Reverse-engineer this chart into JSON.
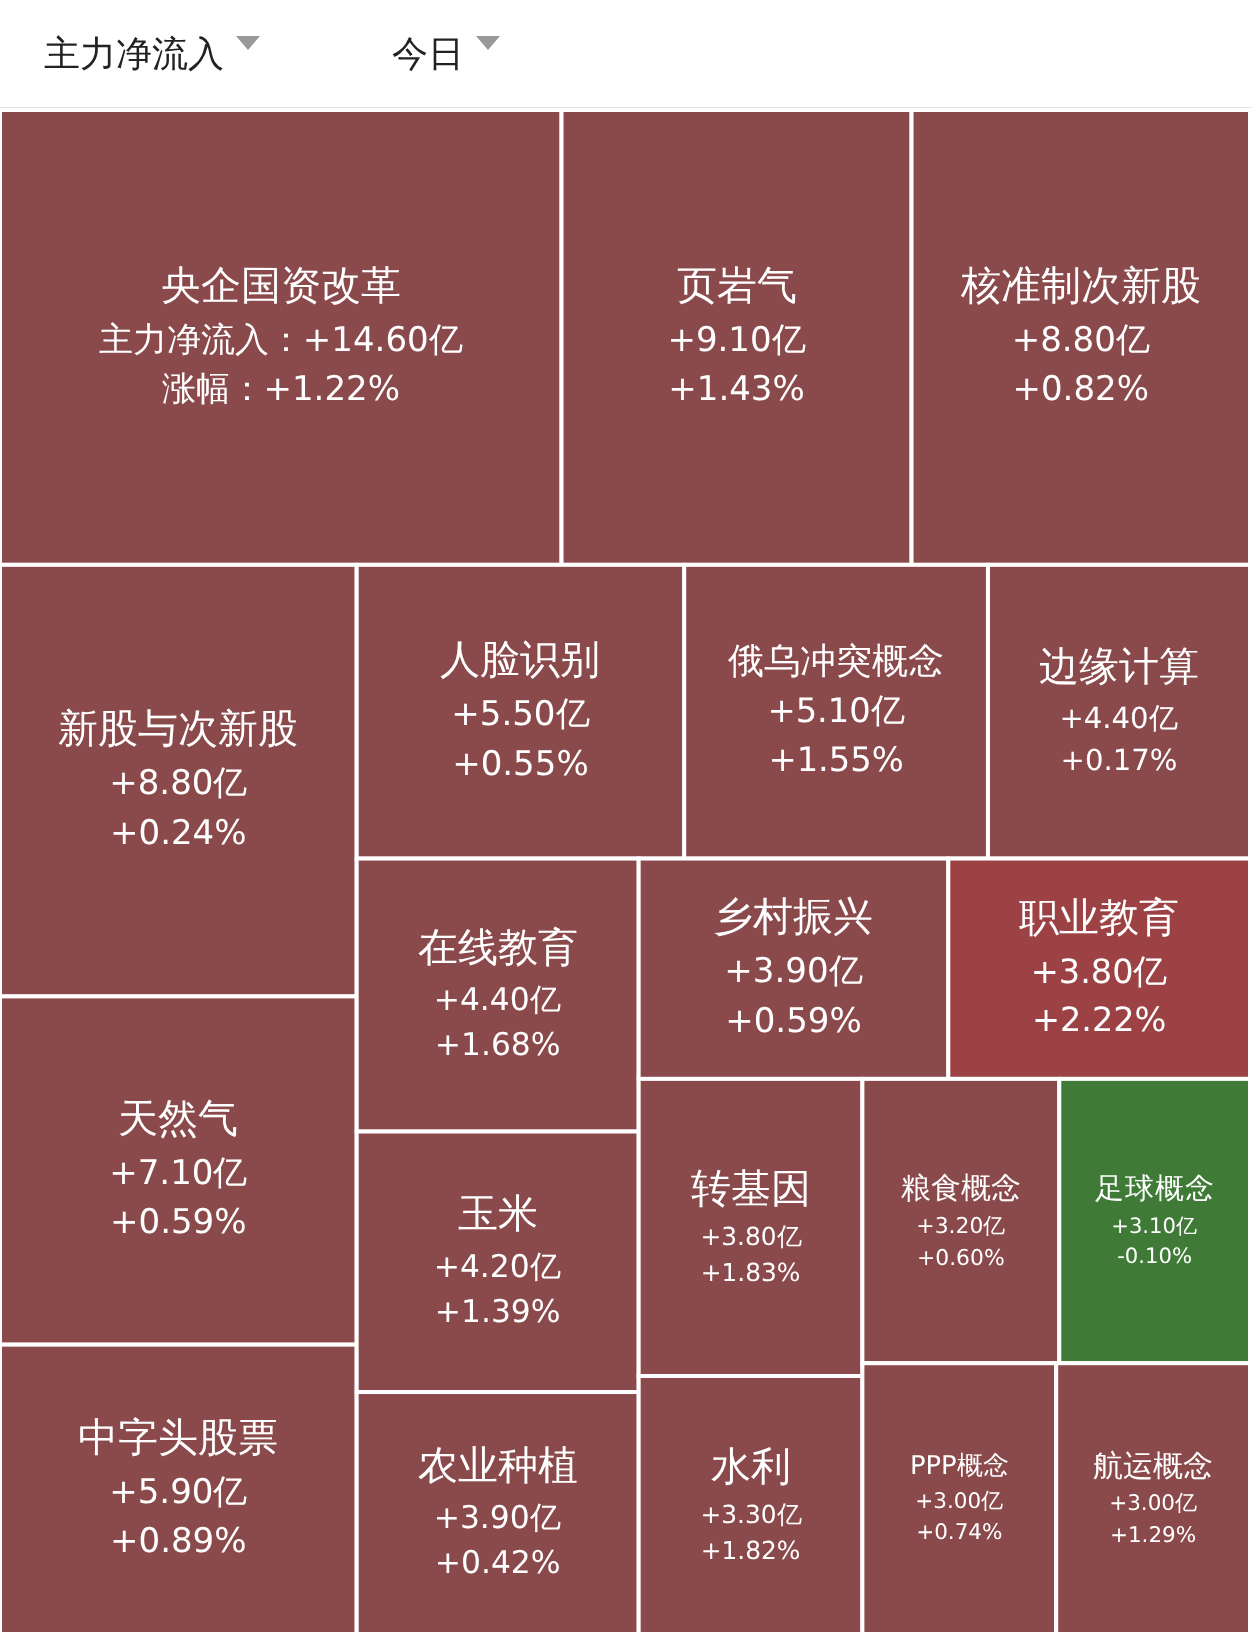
{
  "chart_data": {
    "type": "other",
    "annotations": [
      "主力净流入",
      "今日"
    ],
    "categories": [
      "央企国资改革",
      "页岩气",
      "核准制次新股",
      "新股与次新股",
      "天然气",
      "中字头股票",
      "人脸识别",
      "俄乌冲突概念",
      "边缘计算",
      "在线教育",
      "玉米",
      "农业种植",
      "乡村振兴",
      "职业教育",
      "转基因",
      "水利",
      "粮食概念",
      "足球概念",
      "PPP概念",
      "航运概念"
    ],
    "series": [
      {
        "colors": [
          "#8a494b",
          "#8a494b",
          "#8a494b",
          "#8a494b",
          "#8a494b",
          "#8a494b",
          "#8a494b",
          "#8a494b",
          "#8a494b",
          "#8a494b",
          "#8a494b",
          "#8a494b",
          "#8a494b",
          "#9c4244",
          "#8a494b",
          "#8a494b",
          "#8a494b",
          "#3f7a37",
          "#8a494b",
          "#8a494b"
        ],
        "values": [
          14.6,
          9.1,
          8.8,
          8.8,
          7.1,
          5.9,
          5.5,
          5.1,
          4.4,
          4.4,
          4.2,
          3.9,
          3.9,
          3.8,
          3.8,
          3.3,
          3.2,
          3.1,
          3.0,
          3.0
        ],
        "value_labels": [
          "主力净流入：+14.60亿",
          "+9.10亿",
          "+8.80亿",
          "+8.80亿",
          "+7.10亿",
          "+5.90亿",
          "+5.50亿",
          "+5.10亿",
          "+4.40亿",
          "+4.40亿",
          "+4.20亿",
          "+3.90亿",
          "+3.90亿",
          "+3.80亿",
          "+3.80亿",
          "+3.30亿",
          "+3.20亿",
          "+3.10亿",
          "+3.00亿",
          "+3.00亿"
        ]
      },
      {
        "values": [
          1.22,
          1.43,
          0.82,
          0.24,
          0.59,
          0.89,
          0.55,
          1.55,
          0.17,
          1.68,
          1.39,
          0.42,
          0.59,
          2.22,
          1.83,
          1.82,
          0.6,
          -0.1,
          0.74,
          1.29
        ],
        "value_labels": [
          "涨幅：+1.22%",
          "+1.43%",
          "+0.82%",
          "+0.24%",
          "+0.59%",
          "+0.89%",
          "+0.55%",
          "+1.55%",
          "+0.17%",
          "+1.68%",
          "+1.39%",
          "+0.42%",
          "+0.59%",
          "+2.22%",
          "+1.83%",
          "+1.82%",
          "+0.60%",
          "-0.10%",
          "+0.74%",
          "+1.29%"
        ]
      }
    ]
  }
}
